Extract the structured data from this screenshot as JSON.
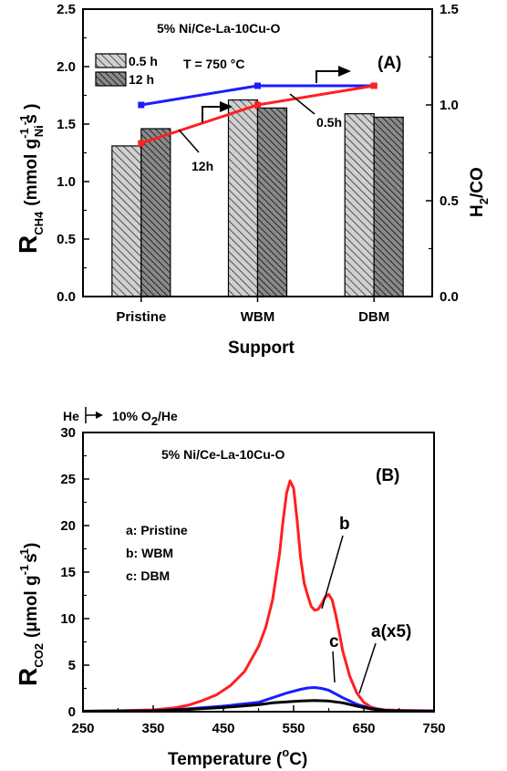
{
  "chart_data": [
    {
      "panel": "(A)",
      "type": "bar",
      "title": "5% Ni/Ce-La-10Cu-O",
      "condition": "T = 750 °C",
      "categories": [
        "Pristine",
        "WBM",
        "DBM"
      ],
      "xlabel": "Support",
      "ylabel": {
        "main": "R",
        "sub": "CH4",
        "units_open": "(mmol g",
        "units_sub": "Ni",
        "units_close": "s )",
        "sup1": "-1",
        "sup2": "-1"
      },
      "ylim": [
        0,
        2.5
      ],
      "yticks": [
        "0.0",
        "0.5",
        "1.0",
        "1.5",
        "2.0",
        "2.5"
      ],
      "y2label": {
        "main": "H",
        "sub": "2",
        "rest": "/CO"
      },
      "y2lim": [
        0,
        1.5
      ],
      "y2ticks": [
        "0.0",
        "0.5",
        "1.0",
        "1.5"
      ],
      "series": [
        {
          "name": "0.5 h",
          "values": [
            1.31,
            1.71,
            1.59
          ]
        },
        {
          "name": "12 h",
          "values": [
            1.46,
            1.64,
            1.56
          ]
        }
      ],
      "ratio_lines": [
        {
          "label": "0.5h",
          "color": "#1c1cff",
          "values": [
            1.0,
            1.1,
            1.1
          ]
        },
        {
          "label": "12h",
          "color": "#ff2020",
          "values": [
            0.8,
            1.0,
            1.1
          ]
        }
      ]
    },
    {
      "panel": "(B)",
      "type": "line",
      "title": "5% Ni/Ce-La-10Cu-O",
      "gas_switch": {
        "from": "He",
        "to_main": "10% O",
        "to_sub": "2",
        "to_rest": "/He"
      },
      "xlabel": {
        "main": "Temperature (",
        "sup": "o",
        "rest": "C)"
      },
      "ylabel": {
        "main": "R",
        "sub": "CO2",
        "units_open": "(μmol g",
        "units_close": "s )",
        "sup1": "-1",
        "sup2": "-1"
      },
      "xlim": [
        250,
        750
      ],
      "xticks": [
        "250",
        "350",
        "450",
        "550",
        "650",
        "750"
      ],
      "ylim": [
        0,
        30
      ],
      "yticks": [
        "0",
        "5",
        "10",
        "15",
        "20",
        "25",
        "30"
      ],
      "legend_entries": [
        "a: Pristine",
        "b: WBM",
        "c: DBM"
      ],
      "series": [
        {
          "name": "b",
          "color": "#ff2020",
          "x": [
            250,
            300,
            350,
            380,
            400,
            420,
            440,
            460,
            480,
            500,
            510,
            520,
            530,
            535,
            540,
            545,
            550,
            555,
            560,
            565,
            570,
            575,
            580,
            585,
            590,
            595,
            600,
            605,
            610,
            615,
            620,
            630,
            640,
            650,
            660,
            670,
            680,
            700,
            720,
            750
          ],
          "y": [
            0.05,
            0.1,
            0.2,
            0.4,
            0.7,
            1.2,
            1.8,
            2.8,
            4.3,
            7.0,
            9.0,
            12.0,
            17.0,
            20.5,
            23.5,
            24.8,
            24.0,
            20.5,
            16.5,
            13.8,
            12.5,
            11.3,
            10.9,
            11.0,
            11.6,
            12.3,
            12.6,
            12.0,
            10.4,
            8.5,
            6.5,
            3.8,
            2.0,
            1.0,
            0.5,
            0.3,
            0.2,
            0.15,
            0.12,
            0.1
          ]
        },
        {
          "name": "c",
          "color": "#1c1cff",
          "x": [
            250,
            350,
            400,
            450,
            500,
            520,
            540,
            560,
            570,
            580,
            590,
            600,
            610,
            620,
            640,
            660,
            680,
            700,
            750
          ],
          "y": [
            0.05,
            0.1,
            0.3,
            0.6,
            1.0,
            1.5,
            2.0,
            2.4,
            2.55,
            2.6,
            2.5,
            2.3,
            1.9,
            1.5,
            0.8,
            0.35,
            0.15,
            0.1,
            0.08
          ]
        },
        {
          "name": "a(x5)",
          "color": "#000000",
          "x": [
            250,
            350,
            400,
            450,
            500,
            520,
            540,
            560,
            580,
            600,
            620,
            640,
            660,
            680,
            700,
            750
          ],
          "y": [
            0.05,
            0.1,
            0.25,
            0.45,
            0.75,
            0.95,
            1.05,
            1.15,
            1.2,
            1.15,
            0.95,
            0.6,
            0.3,
            0.12,
            0.08,
            0.05
          ]
        }
      ]
    }
  ]
}
